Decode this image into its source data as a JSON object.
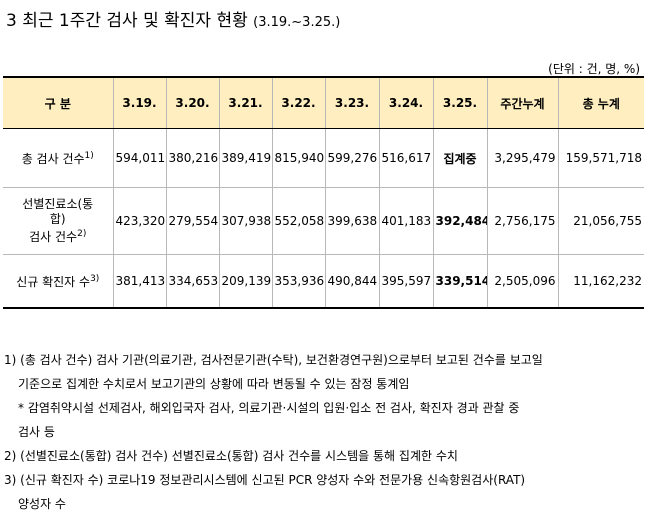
{
  "title": {
    "main": "3 최근 1주간 검사 및 확진자 현황",
    "period": "(3.19.~3.25.)"
  },
  "unit": "(단위 : 건, 명, %)",
  "table": {
    "headers": [
      "구 분",
      "3.19.",
      "3.20.",
      "3.21.",
      "3.22.",
      "3.23.",
      "3.24.",
      "3.25.",
      "주간누계",
      "총 누계"
    ],
    "rows": [
      {
        "label": "총 검사 건수",
        "sup": "1)",
        "values": [
          "594,011",
          "380,216",
          "389,419",
          "815,940",
          "599,276",
          "516,617",
          "집계중",
          "3,295,479",
          "159,571,718"
        ]
      },
      {
        "label_line1": "선별진료소(통",
        "label_line2": "합)",
        "label_line3": "검사 건수",
        "sup": "2)",
        "values": [
          "423,320",
          "279,554",
          "307,938",
          "552,058",
          "399,638",
          "401,183",
          "392,484",
          "2,756,175",
          "21,056,755"
        ]
      },
      {
        "label": "신규 확진자 수",
        "sup": "3)",
        "values": [
          "381,413",
          "334,653",
          "209,139",
          "353,936",
          "490,844",
          "395,597",
          "339,514",
          "2,505,096",
          "11,162,232"
        ]
      }
    ]
  },
  "notes": [
    "1) (총 검사 건수) 검사 기관(의료기관, 검사전문기관(수탁), 보건환경연구원)으로부터 보고된 건수를 보고일",
    "기준으로 집계한 수치로서 보고기관의 상황에 따라 변동될 수 있는 잠정 통계임",
    "* 감염취약시설 선제검사, 해외입국자 검사, 의료기관·시설의 입원·입소 전 검사, 확진자 경과 관찰 중",
    "검사 등",
    "2) (선별진료소(통합) 검사 건수) 선별진료소(통합) 검사 건수를 시스템을 통해 집계한 수치",
    "3) (신규 확진자 수) 코로나19 정보관리시스템에 신고된 PCR 양성자 수와 전문가용 신속항원검사(RAT)",
    "양성자 수"
  ]
}
